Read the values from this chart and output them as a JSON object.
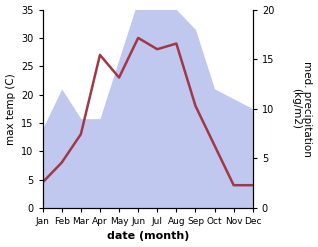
{
  "months": [
    "Jan",
    "Feb",
    "Mar",
    "Apr",
    "May",
    "Jun",
    "Jul",
    "Aug",
    "Sep",
    "Oct",
    "Nov",
    "Dec"
  ],
  "x": [
    1,
    2,
    3,
    4,
    5,
    6,
    7,
    8,
    9,
    10,
    11,
    12
  ],
  "temp": [
    4.5,
    8.0,
    13.0,
    27.0,
    23.0,
    30.0,
    28.0,
    29.0,
    18.0,
    11.0,
    4.0,
    4.0
  ],
  "precip": [
    8.0,
    12.0,
    9.0,
    9.0,
    15.0,
    21.0,
    21.0,
    20.0,
    18.0,
    12.0,
    11.0,
    10.0
  ],
  "temp_color": "#a03848",
  "precip_fill_color": "#c0c8f0",
  "ylabel_left": "max temp (C)",
  "ylabel_right": "med. precipitation\n(kg/m2)",
  "xlabel": "date (month)",
  "ylim_left": [
    0,
    35
  ],
  "ylim_right": [
    0,
    20
  ],
  "yticks_left": [
    0,
    5,
    10,
    15,
    20,
    25,
    30,
    35
  ],
  "yticks_right": [
    0,
    5,
    10,
    15,
    20
  ],
  "bg_color": "#ffffff",
  "linewidth": 1.8
}
